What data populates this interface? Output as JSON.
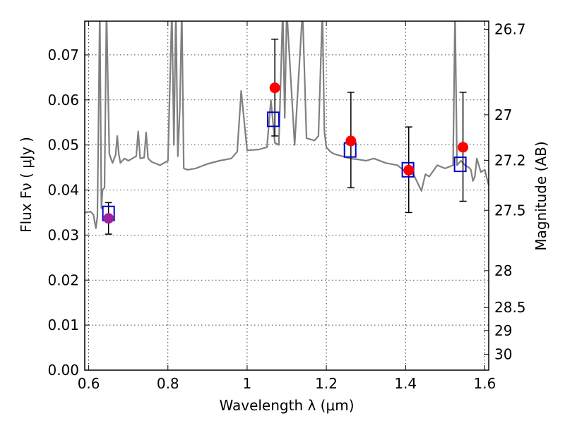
{
  "chart_data": {
    "type": "scatter",
    "xlabel": "Wavelength  λ (μm)",
    "ylabel": "Flux  Fν  ( μJy )",
    "ylabel_right": "Magnitude (AB)",
    "xlim": [
      0.59,
      1.61
    ],
    "ylim": [
      0.0,
      0.0775
    ],
    "x_ticks": [
      0.6,
      0.8,
      1.0,
      1.2,
      1.4,
      1.6
    ],
    "x_tick_labels": [
      "0.6",
      "0.8",
      "1",
      "1.2",
      "1.4",
      "1.6"
    ],
    "y_ticks": [
      0.0,
      0.01,
      0.02,
      0.03,
      0.04,
      0.05,
      0.06,
      0.07
    ],
    "y_tick_labels": [
      "0.00",
      "0.01",
      "0.02",
      "0.03",
      "0.04",
      "0.05",
      "0.06",
      "0.07"
    ],
    "right_ticks": [
      {
        "label": "26.7",
        "flux": 0.0757
      },
      {
        "label": "27",
        "flux": 0.0567
      },
      {
        "label": "27.2",
        "flux": 0.0466
      },
      {
        "label": "27.5",
        "flux": 0.0355
      },
      {
        "label": "28",
        "flux": 0.0221
      },
      {
        "label": "28.5",
        "flux": 0.0139
      },
      {
        "label": "29",
        "flux": 0.0088
      },
      {
        "label": "30",
        "flux": 0.0035
      }
    ],
    "grid": true,
    "colors": {
      "model": "#808080",
      "observed": "#ff0000",
      "observed_first": "#a020a0",
      "synthetic": "#0000cc",
      "errorbar": "#000000"
    },
    "series": [
      {
        "role": "model-spectrum",
        "type": "line",
        "x": [
          0.59,
          0.605,
          0.612,
          0.618,
          0.622,
          0.628,
          0.632,
          0.635,
          0.64,
          0.645,
          0.652,
          0.66,
          0.668,
          0.672,
          0.676,
          0.68,
          0.69,
          0.7,
          0.72,
          0.725,
          0.73,
          0.74,
          0.745,
          0.75,
          0.76,
          0.78,
          0.8,
          0.81,
          0.815,
          0.82,
          0.825,
          0.83,
          0.835,
          0.84,
          0.85,
          0.87,
          0.9,
          0.93,
          0.96,
          0.975,
          0.985,
          1.0,
          1.03,
          1.05,
          1.06,
          1.07,
          1.08,
          1.09,
          1.095,
          1.1,
          1.12,
          1.14,
          1.15,
          1.17,
          1.18,
          1.19,
          1.195,
          1.2,
          1.21,
          1.22,
          1.24,
          1.26,
          1.28,
          1.3,
          1.32,
          1.35,
          1.38,
          1.4,
          1.42,
          1.44,
          1.45,
          1.46,
          1.48,
          1.5,
          1.52,
          1.525,
          1.53,
          1.535,
          1.54,
          1.55,
          1.56,
          1.565,
          1.57,
          1.575,
          1.58,
          1.59,
          1.6,
          1.61
        ],
        "y": [
          0.035,
          0.0352,
          0.0345,
          0.0315,
          0.034,
          0.08,
          0.036,
          0.04,
          0.0405,
          0.08,
          0.048,
          0.046,
          0.0478,
          0.052,
          0.048,
          0.046,
          0.047,
          0.0465,
          0.0475,
          0.053,
          0.047,
          0.0472,
          0.0528,
          0.047,
          0.0462,
          0.0455,
          0.0465,
          0.08,
          0.05,
          0.08,
          0.0475,
          0.058,
          0.08,
          0.0448,
          0.0445,
          0.0448,
          0.0458,
          0.0465,
          0.047,
          0.0485,
          0.062,
          0.0488,
          0.049,
          0.0495,
          0.06,
          0.0505,
          0.05,
          0.08,
          0.056,
          0.08,
          0.05,
          0.08,
          0.0515,
          0.051,
          0.052,
          0.08,
          0.053,
          0.0495,
          0.0485,
          0.048,
          0.0475,
          0.047,
          0.0468,
          0.0465,
          0.047,
          0.046,
          0.0455,
          0.044,
          0.0435,
          0.0398,
          0.0435,
          0.043,
          0.0455,
          0.0448,
          0.0455,
          0.08,
          0.0455,
          0.046,
          0.0465,
          0.0455,
          0.045,
          0.0445,
          0.042,
          0.043,
          0.047,
          0.044,
          0.0445,
          0.041
        ]
      },
      {
        "role": "synthetic-photometry",
        "type": "scatter",
        "marker": "open-square",
        "x": [
          0.65,
          1.066,
          1.26,
          1.406,
          1.538
        ],
        "y": [
          0.0348,
          0.0557,
          0.0489,
          0.0445,
          0.0457
        ]
      },
      {
        "role": "observed-photometry",
        "type": "scatter",
        "marker": "filled-circle",
        "x": [
          0.65,
          1.07,
          1.262,
          1.408,
          1.545
        ],
        "y": [
          0.0337,
          0.0627,
          0.0509,
          0.0444,
          0.0495
        ],
        "yerr_low": [
          0.0302,
          0.052,
          0.0405,
          0.035,
          0.0375
        ],
        "yerr_high": [
          0.0372,
          0.0735,
          0.0617,
          0.054,
          0.0617
        ]
      }
    ]
  }
}
